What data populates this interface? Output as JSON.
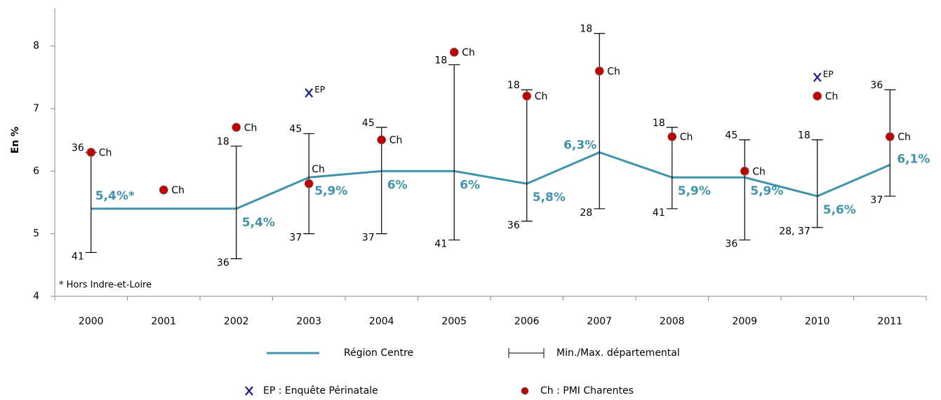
{
  "chart_data": {
    "type": "line",
    "y_label": "En %",
    "annotation": "* Hors Indre-et-Loire",
    "categories": [
      "2000",
      "2001",
      "2002",
      "2003",
      "2004",
      "2005",
      "2006",
      "2007",
      "2008",
      "2009",
      "2010",
      "2011"
    ],
    "ylim": [
      4,
      8.6
    ],
    "yticks": [
      4,
      5,
      6,
      7,
      8
    ],
    "series": [
      {
        "name": "Région Centre",
        "type": "line",
        "color": "#3f93aa",
        "values": [
          5.4,
          5.4,
          5.4,
          5.9,
          6.0,
          6.0,
          5.8,
          6.3,
          5.9,
          5.9,
          5.6,
          6.1
        ],
        "value_labels": [
          "5,4%*",
          null,
          "5,4%",
          "5,9%",
          "6%",
          "6%",
          "5,8%",
          "6,3%",
          "5,9%",
          "5,9%",
          "5,6%",
          "6,1%"
        ]
      },
      {
        "name": "Min./Max. départemental",
        "type": "errorbar",
        "color": "#000000",
        "min": [
          4.7,
          null,
          4.6,
          5.0,
          5.0,
          4.9,
          5.2,
          5.4,
          5.4,
          4.9,
          5.1,
          5.6
        ],
        "max": [
          6.3,
          null,
          6.4,
          6.6,
          6.7,
          7.7,
          7.3,
          8.2,
          6.7,
          6.5,
          6.5,
          7.3
        ],
        "min_labels": [
          "41",
          null,
          "36",
          "37",
          "37",
          "41",
          "36",
          "28",
          "41",
          "36",
          "28, 37",
          "37"
        ],
        "max_labels": [
          "36",
          null,
          "18",
          "45",
          "45",
          "18",
          "18",
          "18",
          "18",
          "45",
          "18",
          "36"
        ]
      },
      {
        "name": "EP : Enquête Périnatale",
        "type": "scatter",
        "marker": "x",
        "color": "#1f1f8c",
        "point_label": "EP",
        "values": [
          null,
          null,
          null,
          7.25,
          null,
          null,
          null,
          null,
          null,
          null,
          7.5,
          null
        ]
      },
      {
        "name": "Ch : PMI Charentes",
        "type": "scatter",
        "marker": "circle",
        "color": "#c00000",
        "point_label": "Ch",
        "values": [
          6.3,
          5.7,
          6.7,
          5.8,
          6.5,
          7.9,
          7.2,
          7.6,
          6.55,
          6.0,
          7.2,
          6.55
        ]
      }
    ]
  }
}
